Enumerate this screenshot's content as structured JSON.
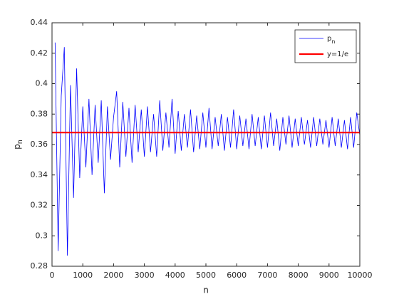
{
  "chart_data": {
    "type": "line",
    "xlabel": "n",
    "ylabel": "p_n",
    "xlim": [
      0,
      10000
    ],
    "ylim": [
      0.28,
      0.44
    ],
    "xticks": [
      0,
      1000,
      2000,
      3000,
      4000,
      5000,
      6000,
      7000,
      8000,
      9000,
      10000
    ],
    "yticks": [
      0.28,
      0.3,
      0.32,
      0.34,
      0.36,
      0.38,
      0.4,
      0.42,
      0.44
    ],
    "legend": "upper right",
    "series": [
      {
        "name": "p_n",
        "color": "#0000ff",
        "x": [
          100,
          200,
          300,
          400,
          500,
          600,
          700,
          800,
          900,
          1000,
          1100,
          1200,
          1300,
          1400,
          1500,
          1600,
          1700,
          1800,
          1900,
          2000,
          2100,
          2200,
          2300,
          2400,
          2500,
          2600,
          2700,
          2800,
          2900,
          3000,
          3100,
          3200,
          3300,
          3400,
          3500,
          3600,
          3700,
          3800,
          3900,
          4000,
          4100,
          4200,
          4300,
          4400,
          4500,
          4600,
          4700,
          4800,
          4900,
          5000,
          5100,
          5200,
          5300,
          5400,
          5500,
          5600,
          5700,
          5800,
          5900,
          6000,
          6100,
          6200,
          6300,
          6400,
          6500,
          6600,
          6700,
          6800,
          6900,
          7000,
          7100,
          7200,
          7300,
          7400,
          7500,
          7600,
          7700,
          7800,
          7900,
          8000,
          8100,
          8200,
          8300,
          8400,
          8500,
          8600,
          8700,
          8800,
          8900,
          9000,
          9100,
          9200,
          9300,
          9400,
          9500,
          9600,
          9700,
          9800,
          9900,
          10000
        ],
        "values": [
          0.427,
          0.29,
          0.392,
          0.424,
          0.287,
          0.399,
          0.325,
          0.41,
          0.338,
          0.385,
          0.345,
          0.39,
          0.34,
          0.386,
          0.348,
          0.389,
          0.328,
          0.385,
          0.35,
          0.378,
          0.395,
          0.345,
          0.388,
          0.352,
          0.384,
          0.348,
          0.386,
          0.355,
          0.383,
          0.352,
          0.385,
          0.355,
          0.38,
          0.352,
          0.389,
          0.356,
          0.381,
          0.358,
          0.39,
          0.354,
          0.382,
          0.356,
          0.38,
          0.358,
          0.383,
          0.355,
          0.379,
          0.357,
          0.381,
          0.358,
          0.384,
          0.357,
          0.378,
          0.359,
          0.38,
          0.356,
          0.378,
          0.358,
          0.383,
          0.357,
          0.379,
          0.359,
          0.377,
          0.357,
          0.38,
          0.359,
          0.378,
          0.357,
          0.379,
          0.358,
          0.381,
          0.359,
          0.377,
          0.356,
          0.378,
          0.36,
          0.379,
          0.358,
          0.377,
          0.359,
          0.378,
          0.36,
          0.376,
          0.358,
          0.378,
          0.359,
          0.377,
          0.36,
          0.376,
          0.358,
          0.378,
          0.359,
          0.377,
          0.358,
          0.376,
          0.357,
          0.378,
          0.358,
          0.381,
          0.366
        ]
      },
      {
        "name": "y=1/e",
        "color": "#ff0000",
        "x": [
          0,
          10000
        ],
        "values": [
          0.3679,
          0.3679
        ]
      }
    ]
  }
}
